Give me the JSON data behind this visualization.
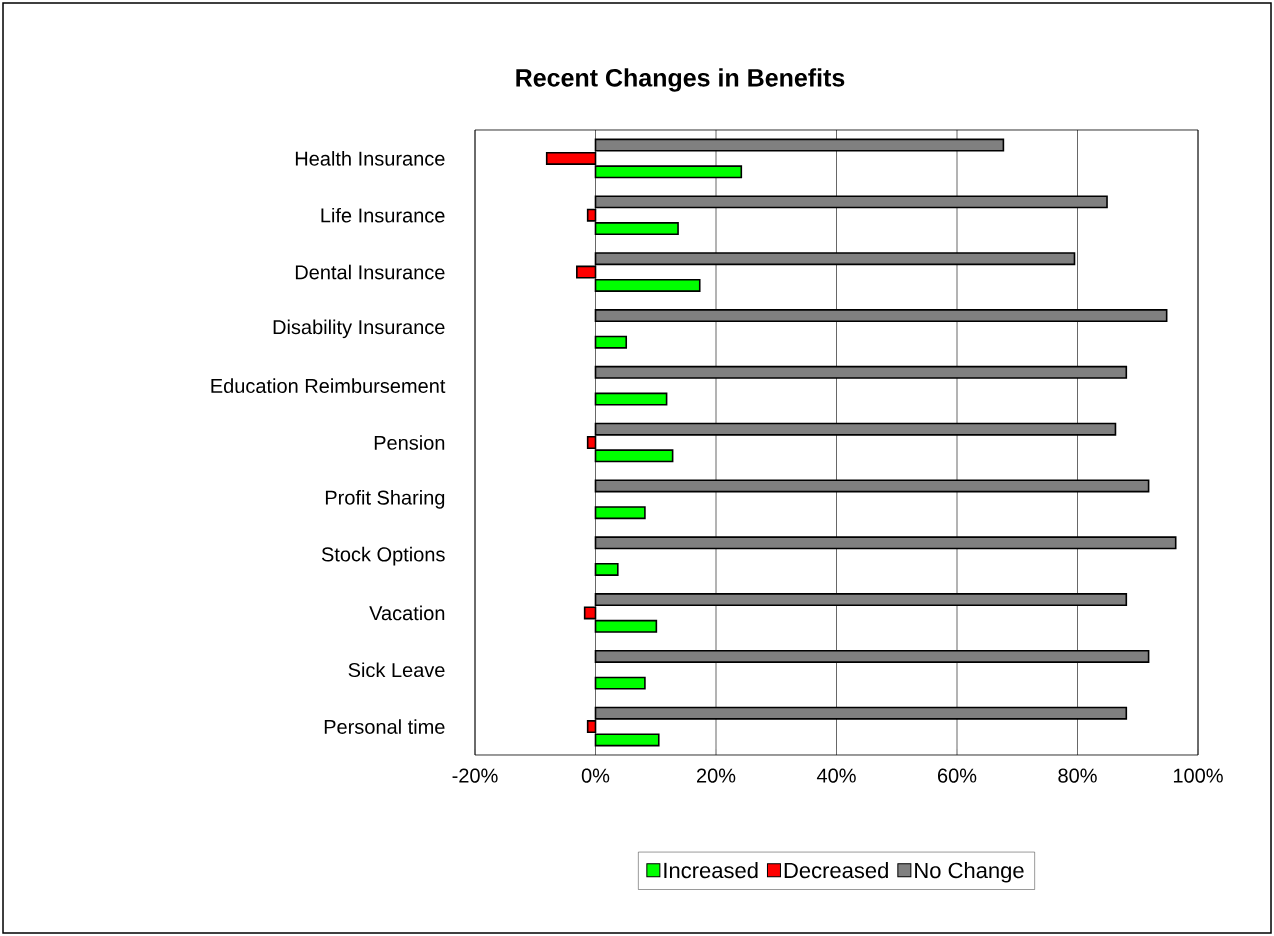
{
  "chart_data": {
    "type": "bar",
    "orientation": "horizontal",
    "title": "Recent Changes in Benefits",
    "categories": [
      "Health Insurance",
      "Life Insurance",
      "Dental Insurance",
      "Disability Insurance",
      "Education Reimbursement",
      "Pension",
      "Profit Sharing",
      "Stock Options",
      "Vacation",
      "Sick Leave",
      "Personal time"
    ],
    "series": [
      {
        "name": "Increased",
        "color": "#00ff00",
        "values": [
          24.2,
          13.7,
          17.3,
          5.1,
          11.8,
          12.8,
          8.2,
          3.7,
          10.1,
          8.2,
          10.5
        ]
      },
      {
        "name": "Decreased",
        "color": "#ff0000",
        "values": [
          -8.1,
          -1.3,
          -3.1,
          null,
          null,
          -1.3,
          null,
          null,
          -1.8,
          null,
          -1.3
        ]
      },
      {
        "name": "No Change",
        "color": "#808080",
        "values": [
          67.7,
          84.9,
          79.5,
          94.8,
          88.1,
          86.3,
          91.8,
          96.3,
          88.1,
          91.8,
          88.1
        ]
      }
    ],
    "xlim": [
      -20,
      100
    ],
    "xticks": [
      {
        "value": -20,
        "label": "-20%"
      },
      {
        "value": 0,
        "label": "0%"
      },
      {
        "value": 20,
        "label": "20%"
      },
      {
        "value": 40,
        "label": "40%"
      },
      {
        "value": 60,
        "label": "60%"
      },
      {
        "value": 80,
        "label": "80%"
      },
      {
        "value": 100,
        "label": "100%"
      }
    ],
    "grid": "x",
    "legend": "bottom"
  }
}
